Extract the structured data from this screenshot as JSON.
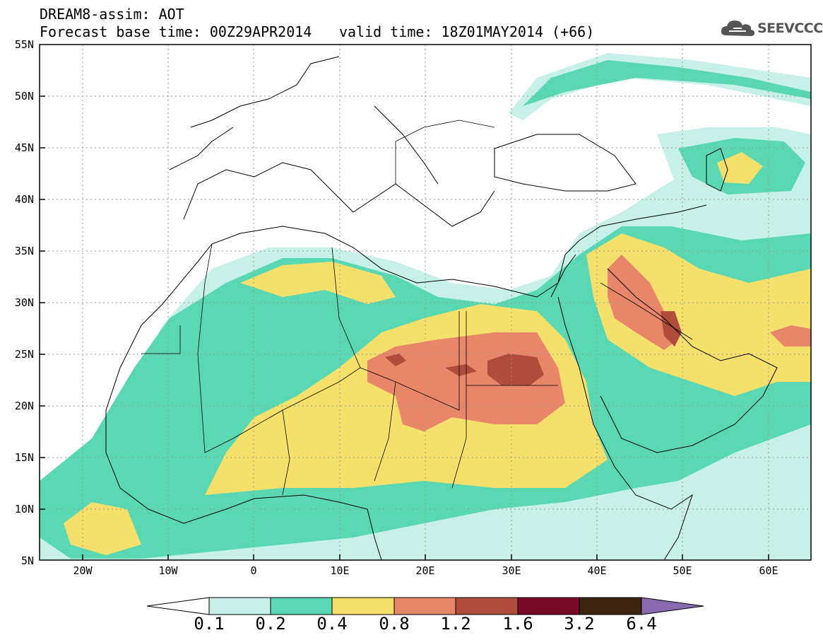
{
  "title": {
    "line1": "DREAM8-assim: AOT",
    "base_time": "Forecast base time: 00Z29APR2014",
    "valid_time": "valid time: 18Z01MAY2014 (+66)"
  },
  "logo": {
    "text": "SEEVCCC",
    "icon": "cloud-icon",
    "color": "#555555"
  },
  "map": {
    "lat_ticks": [
      "55N",
      "50N",
      "45N",
      "40N",
      "35N",
      "30N",
      "25N",
      "20N",
      "15N",
      "10N",
      "5N"
    ],
    "lon_ticks": [
      "20W",
      "10W",
      "0",
      "10E",
      "20E",
      "30E",
      "40E",
      "50E",
      "60E"
    ],
    "lat_range": [
      5,
      55
    ],
    "lon_range": [
      -25,
      65
    ]
  },
  "colorbar": {
    "labels": [
      "0.1",
      "0.2",
      "0.4",
      "0.8",
      "1.2",
      "1.6",
      "3.2",
      "6.4"
    ],
    "colors": [
      "#ffffff",
      "#c6f0e8",
      "#5ad8b3",
      "#f5e06b",
      "#e8866a",
      "#b04c3c",
      "#7a0a2a",
      "#3c2412",
      "#8a6bb0"
    ]
  }
}
